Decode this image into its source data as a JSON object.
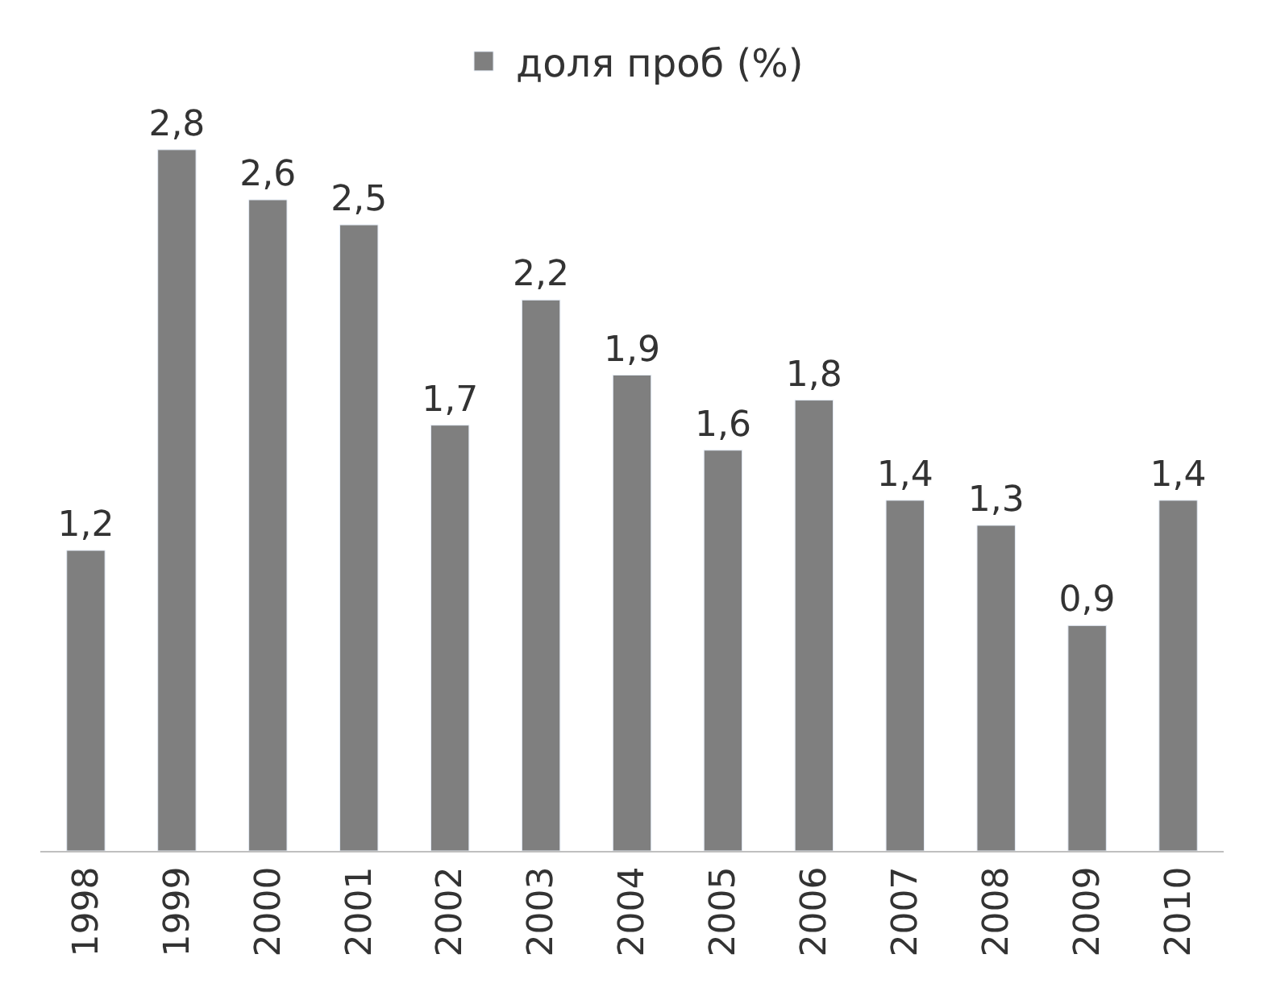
{
  "chart_data": {
    "type": "bar",
    "categories": [
      "1998",
      "1999",
      "2000",
      "2001",
      "2002",
      "2003",
      "2004",
      "2005",
      "2006",
      "2007",
      "2008",
      "2009",
      "2010"
    ],
    "series": [
      {
        "name": "доля проб (%)",
        "color": "#7f7f7f",
        "values": [
          1.2,
          2.8,
          2.6,
          2.5,
          1.7,
          2.2,
          1.9,
          1.6,
          1.8,
          1.4,
          1.3,
          0.9,
          1.4
        ],
        "value_labels": [
          "1,2",
          "2,8",
          "2,6",
          "2,5",
          "1,7",
          "2,2",
          "1,9",
          "1,6",
          "1,8",
          "1,4",
          "1,3",
          "0,9",
          "1,4"
        ]
      }
    ],
    "legend": "top"
  }
}
